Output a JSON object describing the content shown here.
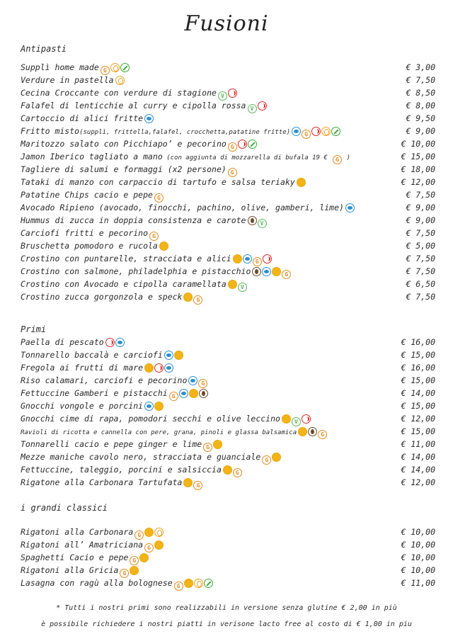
{
  "brand": "Fusioni",
  "sections": {
    "antipasti": "Antipasti",
    "primi": "Primi",
    "classici": "i grandi classici"
  },
  "antipasti": [
    {
      "name": "Supplì home made",
      "price": "€ 3,00"
    },
    {
      "name": "Verdure in pastella",
      "price": "€ 7,50"
    },
    {
      "name": "Cecina Croccante con verdure di stagione",
      "price": "€ 8,50"
    },
    {
      "name": "Falafel di lenticchie al curry e cipolla rossa",
      "price": "€ 8,00"
    },
    {
      "name": "Cartoccio di alici fritte",
      "price": "€ 9,50"
    },
    {
      "name": "Fritto misto",
      "note": "(supplì, frittella,falafel, crocchetta,patatine fritte)",
      "price": "€ 9,00"
    },
    {
      "name": "Maritozzo salato con Picchiapo’ e pecorino",
      "price": "€ 10,00"
    },
    {
      "name": "Jamon Iberico tagliato a mano",
      "note": " (con aggiunta di mozzarella di bufala 19 € ",
      "note2": " )",
      "price": "€ 15,00"
    },
    {
      "name": "Tagliere di salumi e formaggi (x2 persone)",
      "price": "€ 18,00"
    },
    {
      "name": "Tataki di manzo con carpaccio di tartufo e salsa teriaky",
      "price": "€ 12,00"
    },
    {
      "name": "Patatine Chips cacio e pepe",
      "price": "€ 7,50"
    },
    {
      "name": "Avocado Ripieno (avocado, finocchi, pachino, olive, gamberi, lime)",
      "price": "€ 9,00"
    },
    {
      "name": "Hummus di zucca in doppia consistenza e carote",
      "price": "€ 9,00"
    },
    {
      "name": "Carciofi fritti e pecorino",
      "price": "€ 7,50"
    },
    {
      "name": "Bruschetta pomodoro e rucola",
      "price": "€ 5,00"
    },
    {
      "name": "Crostino con puntarelle, stracciata e alici",
      "price": "€ 7,50"
    },
    {
      "name": "Crostino con salmone, philadelphia e pistacchio",
      "price": "€ 7,50"
    },
    {
      "name": "Crostino con Avocado e cipolla caramellata",
      "price": "€ 6,50"
    },
    {
      "name": "Crostino zucca gorgonzola e speck",
      "price": "€ 7,50"
    }
  ],
  "primi": [
    {
      "name": "Paella di pescato",
      "price": "€ 16,00"
    },
    {
      "name": "Tonnarello baccalà e carciofi",
      "price": "€ 15,00"
    },
    {
      "name": "Fregola ai frutti di mare",
      "price": "€ 16,00"
    },
    {
      "name": "Riso calamari, carciofi e pecorino",
      "price": "€ 15,00"
    },
    {
      "name": "Fettuccine Gamberi e pistacchi",
      "price": "€ 14,00"
    },
    {
      "name": "Gnocchi vongole e porcini",
      "price": "€ 15,00"
    },
    {
      "name": "Gnocchi cime di rapa, pomodori secchi e olive leccino",
      "price": "€ 12,00"
    },
    {
      "name": "Ravioli di ricotta e cannella con pere, grana, pinoli e glassa balsamica",
      "price": "€ 15,00"
    },
    {
      "name": "Tonnarelli cacio e pepe ginger e lime",
      "price": "€ 11,00"
    },
    {
      "name": "Mezze maniche cavolo nero, stracciata e guanciale",
      "price": "€ 14,00"
    },
    {
      "name": "Fettuccine, taleggio, porcini e salsiccia",
      "price": "€ 14,00"
    },
    {
      "name": "Rigatone alla Carbonara Tartufata",
      "price": "€ 12,00"
    }
  ],
  "classici": [
    {
      "name": "Rigatoni alla Carbonara",
      "price": "€ 10,00"
    },
    {
      "name": "Rigatoni all’ Amatriciana",
      "price": "€ 10,00"
    },
    {
      "name": "Spaghetti Cacio e pepe",
      "price": "€ 10,00"
    },
    {
      "name": "Rigatoni alla Gricia",
      "price": "€ 10,00"
    },
    {
      "name": "Lasagna con ragù alla bolognese",
      "price": "€ 11,00"
    }
  ],
  "footer": {
    "note1": "* Tutti i nostri primi sono realizzabili in versione senza glutine € 2,00 in più",
    "note2": "è possibile richiedere i nostri piatti in verisone lacto free al costo di € 1,00 in piu"
  }
}
